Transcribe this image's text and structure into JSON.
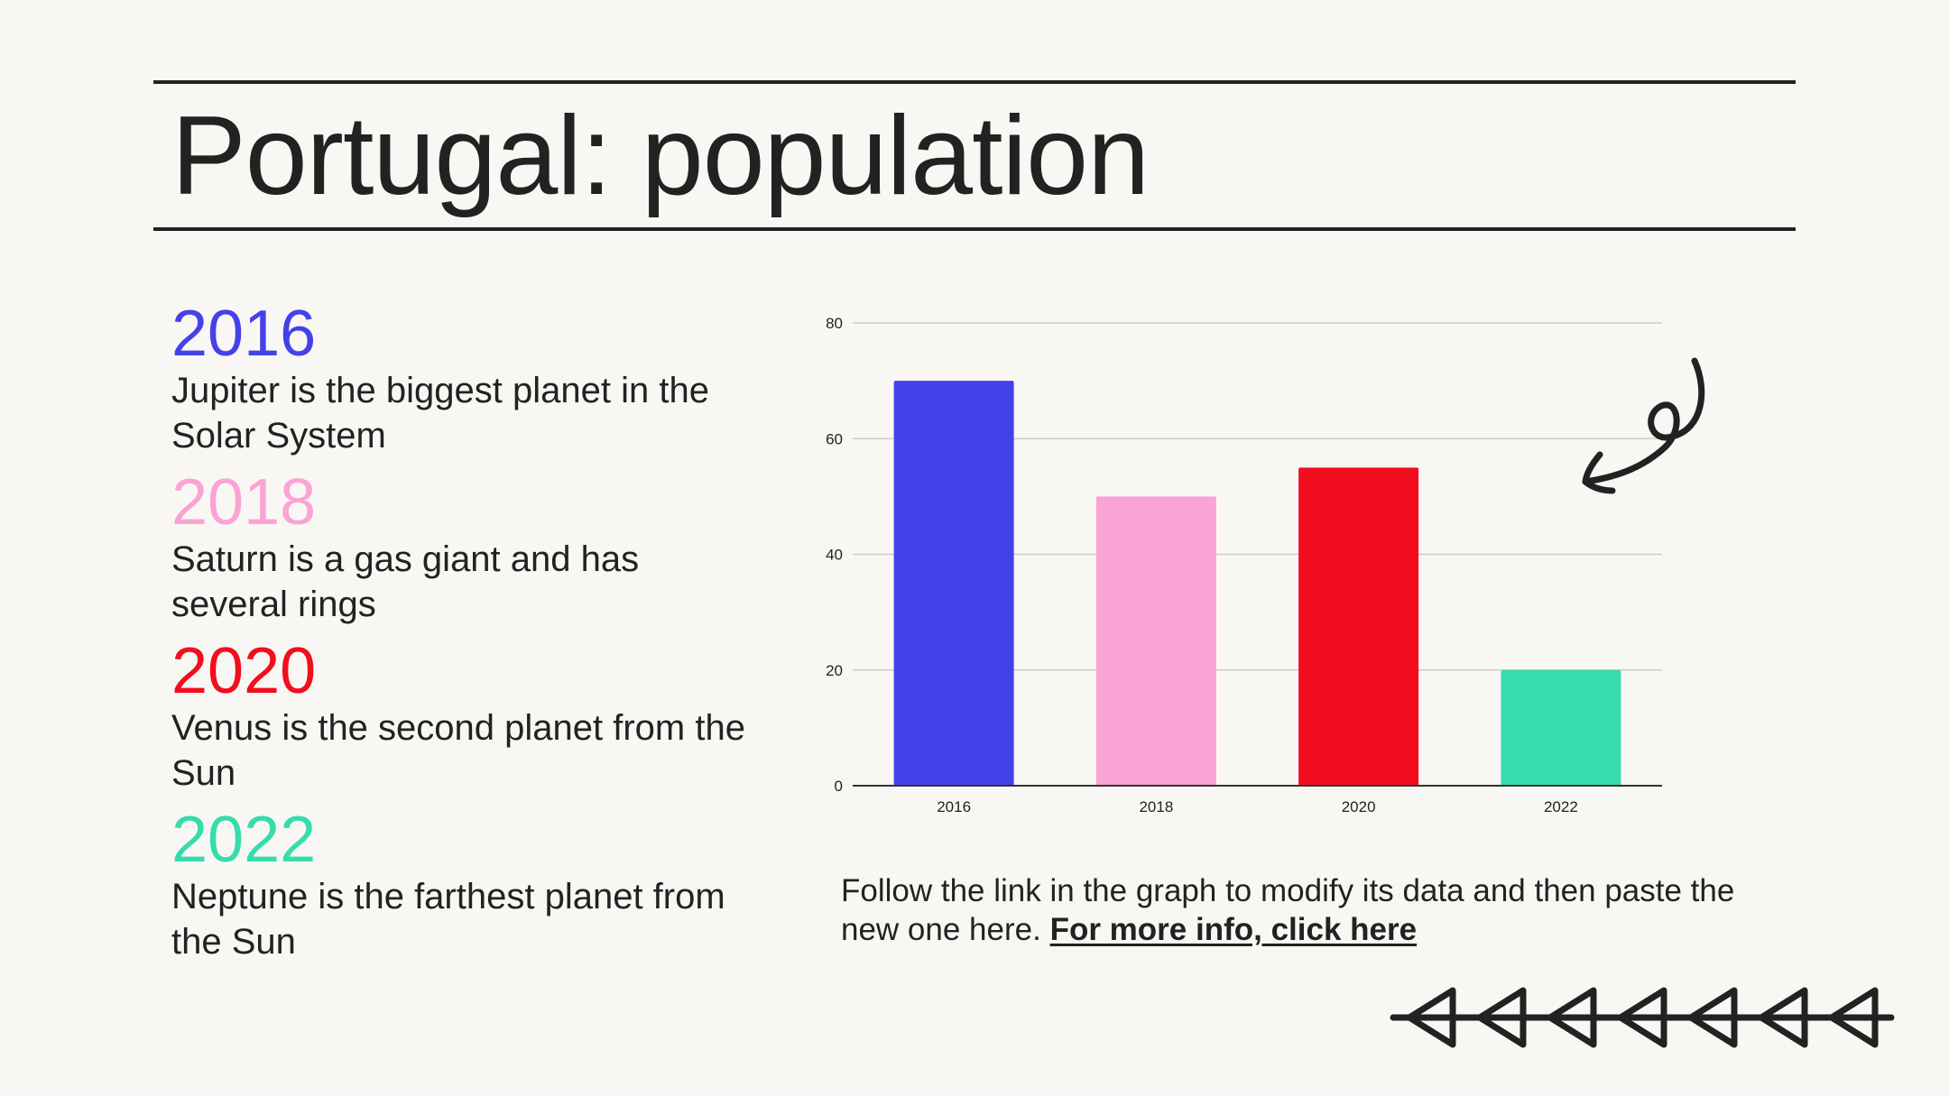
{
  "slide": {
    "title": "Portugal: population",
    "footnote_text": "Follow the link in the graph to modify its data and then paste the new one here. ",
    "footnote_link": "For more info, click here"
  },
  "legend": [
    {
      "year": "2016",
      "text": "Jupiter is the biggest planet in the Solar System",
      "color": "#4541ea"
    },
    {
      "year": "2018",
      "text": "Saturn is a gas giant and has several rings",
      "color": "#fba3d4"
    },
    {
      "year": "2020",
      "text": "Venus is the second planet from the Sun",
      "color": "#f20d1f"
    },
    {
      "year": "2022",
      "text": "Neptune is the farthest planet from the Sun",
      "color": "#36dcad"
    }
  ],
  "decorations": {
    "squiggle": "curly-arrow-icon",
    "arrows": "left-arrow-chain-icon"
  },
  "chart_data": {
    "type": "bar",
    "categories": [
      "2016",
      "2018",
      "2020",
      "2022"
    ],
    "values": [
      70,
      50,
      55,
      20
    ],
    "colors": [
      "#4541ea",
      "#fba3d4",
      "#f20d1f",
      "#36dcad"
    ],
    "ylim": [
      0,
      80
    ],
    "yticks": [
      0,
      20,
      40,
      60,
      80
    ],
    "grid": true,
    "legend": "none",
    "title": "",
    "xlabel": "",
    "ylabel": ""
  }
}
